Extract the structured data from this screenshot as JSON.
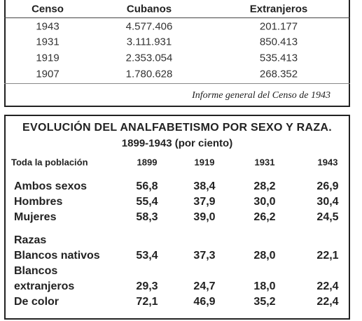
{
  "census_table": {
    "header": [
      "Censo",
      "Cubanos",
      "Extranjeros"
    ],
    "rows": [
      [
        "1943",
        "4.577.406",
        "201.177"
      ],
      [
        "1931",
        "3.111.931",
        "850.413"
      ],
      [
        "1919",
        "2.353.054",
        "535.413"
      ],
      [
        "1907",
        "1.780.628",
        "268.352"
      ]
    ],
    "source": "Informe general del Censo de 1943"
  },
  "illiteracy_table": {
    "title": "EVOLUCIÓN DEL ANALFABETISMO POR SEXO Y RAZA.",
    "subtitle": "1899-1943 (por ciento)",
    "header": [
      "Toda la población",
      "1899",
      "1919",
      "1931",
      "1943"
    ],
    "rows": [
      {
        "label": "Ambos sexos",
        "values": [
          "56,8",
          "38,4",
          "28,2",
          "26,9"
        ]
      },
      {
        "label": "Hombres",
        "values": [
          "55,4",
          "37,9",
          "30,0",
          "30,4"
        ]
      },
      {
        "label": "Mujeres",
        "values": [
          "58,3",
          "39,0",
          "26,2",
          "24,5"
        ]
      },
      {
        "label": "Razas",
        "values": []
      },
      {
        "label": "Blancos nativos",
        "values": [
          "53,4",
          "37,3",
          "28,0",
          "22,1"
        ]
      },
      {
        "label": "Blancos",
        "values": []
      },
      {
        "label": "extranjeros",
        "values": [
          "29,3",
          "24,7",
          "18,0",
          "22,4"
        ]
      },
      {
        "label": "De color",
        "values": [
          "72,1",
          "46,9",
          "35,2",
          "22,4"
        ]
      }
    ]
  }
}
